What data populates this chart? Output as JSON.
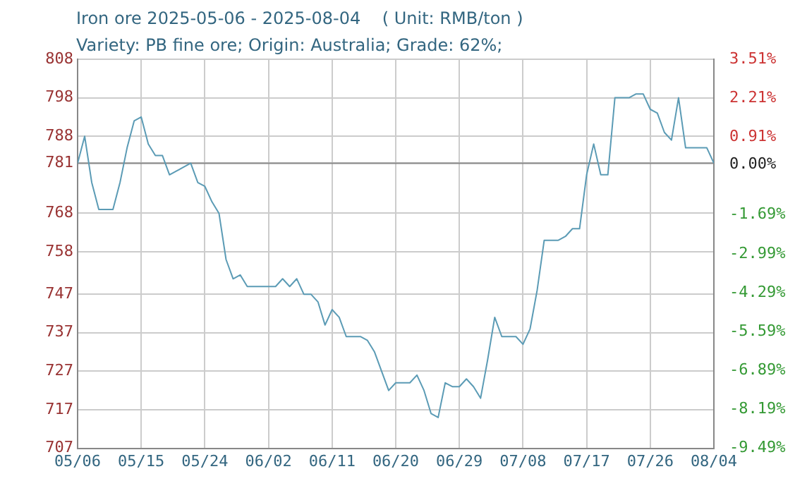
{
  "chart_data": {
    "type": "line",
    "title": "Iron ore 2025-05-06 - 2025-08-04    ( Unit: RMB/ton )",
    "subtitle": "Variety: PB fine ore; Origin: Australia; Grade: 62%;",
    "x": [
      "--05-06",
      "--05-07",
      "--05-08",
      "--05-09",
      "--05-10",
      "--05-11",
      "--05-12",
      "--05-13",
      "--05-14",
      "--05-15",
      "--05-16",
      "--05-17",
      "--05-18",
      "--05-19",
      "--05-20",
      "--05-21",
      "--05-22",
      "--05-23",
      "--05-24",
      "--05-25",
      "--05-26",
      "--05-27",
      "--05-28",
      "--05-29",
      "--05-30",
      "--05-31",
      "--06-01",
      "--06-02",
      "--06-03",
      "--06-04",
      "--06-05",
      "--06-06",
      "--06-07",
      "--06-08",
      "--06-09",
      "--06-10",
      "--06-11",
      "--06-12",
      "--06-13",
      "--06-14",
      "--06-15",
      "--06-16",
      "--06-17",
      "--06-18",
      "--06-19",
      "--06-20",
      "--06-21",
      "--06-22",
      "--06-23",
      "--06-24",
      "--06-25",
      "--06-26",
      "--06-27",
      "--06-28",
      "--06-29",
      "--06-30",
      "--07-01",
      "--07-02",
      "--07-03",
      "--07-04",
      "--07-05",
      "--07-06",
      "--07-07",
      "--07-08",
      "--07-09",
      "--07-10",
      "--07-11",
      "--07-12",
      "--07-13",
      "--07-14",
      "--07-15",
      "--07-16",
      "--07-17",
      "--07-18",
      "--07-19",
      "--07-20",
      "--07-21",
      "--07-22",
      "--07-23",
      "--07-24",
      "--07-25",
      "--07-26",
      "--07-27",
      "--07-28",
      "--07-29",
      "--07-30",
      "--07-31",
      "--08-01",
      "--08-02",
      "--08-03",
      "--08-04"
    ],
    "series": [
      {
        "color": "#5b9bb5",
        "values": [
          781,
          788,
          776,
          769,
          769,
          769,
          776,
          785,
          792,
          793,
          786,
          783,
          783,
          778,
          779,
          780,
          781,
          776,
          775,
          771,
          768,
          756,
          751,
          752,
          749,
          749,
          749,
          749,
          749,
          751,
          749,
          751,
          747,
          747,
          745,
          739,
          743,
          741,
          736,
          736,
          736,
          735,
          732,
          727,
          722,
          724,
          724,
          724,
          726,
          722,
          716,
          715,
          724,
          723,
          723,
          725,
          723,
          720,
          730,
          741,
          736,
          736,
          736,
          734,
          738,
          748,
          761,
          761,
          761,
          762,
          764,
          764,
          778,
          786,
          778,
          778,
          798,
          798,
          798,
          799,
          799,
          795,
          794,
          789,
          787,
          798,
          785,
          785,
          785,
          785,
          781
        ]
      }
    ],
    "xlim": [
      "--05-06",
      "--08-04"
    ],
    "xticks": [
      {
        "value": "--05-06",
        "label": "05/06"
      },
      {
        "value": "--05-15",
        "label": "05/15"
      },
      {
        "value": "--05-24",
        "label": "05/24"
      },
      {
        "value": "--06-02",
        "label": "06/02"
      },
      {
        "value": "--06-11",
        "label": "06/11"
      },
      {
        "value": "--06-20",
        "label": "06/20"
      },
      {
        "value": "--06-29",
        "label": "06/29"
      },
      {
        "value": "--07-08",
        "label": "07/08"
      },
      {
        "value": "--07-17",
        "label": "07/17"
      },
      {
        "value": "--07-26",
        "label": "07/26"
      },
      {
        "value": "--08-04",
        "label": "08/04"
      }
    ],
    "ylim": [
      707,
      808
    ],
    "yticks": [
      707,
      717,
      727,
      737,
      747,
      758,
      768,
      781,
      788,
      798,
      808
    ],
    "y2lim": [
      -9.49,
      3.51
    ],
    "y2ticks": [
      {
        "value": -9.49,
        "label": "-9.49%"
      },
      {
        "value": -8.19,
        "label": "-8.19%"
      },
      {
        "value": -6.89,
        "label": "-6.89%"
      },
      {
        "value": -5.59,
        "label": "-5.59%"
      },
      {
        "value": -4.29,
        "label": "-4.29%"
      },
      {
        "value": -2.99,
        "label": "-2.99%"
      },
      {
        "value": -1.69,
        "label": "-1.69%"
      },
      {
        "value": 0,
        "label": "0.00%"
      },
      {
        "value": 0.91,
        "label": "0.91%"
      },
      {
        "value": 2.21,
        "label": "2.21%"
      },
      {
        "value": 3.51,
        "label": "3.51%"
      }
    ],
    "ref_lines": [
      {
        "axis": "y",
        "value": 781,
        "color": "#888888"
      }
    ],
    "grid": true,
    "legend": false,
    "marker": "none",
    "line_style": "solid"
  }
}
